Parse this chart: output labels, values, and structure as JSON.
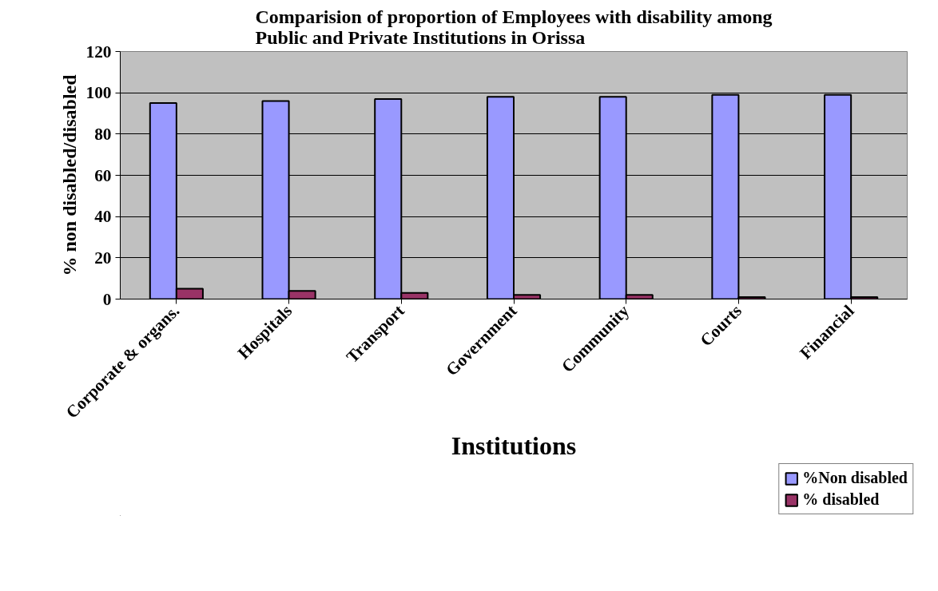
{
  "chart_data": {
    "type": "bar",
    "title": "Comparision of proportion of Employees with disability among\nPublic and Private Institutions in Orissa",
    "xlabel": "Institutions",
    "ylabel": "% non disabled/disabled",
    "categories": [
      "Corporate & organs.",
      "Hospitals",
      "Transport",
      "Government",
      "Community",
      "Courts",
      "Financial"
    ],
    "series": [
      {
        "name": "%Non disabled",
        "color": "#9999ff",
        "values": [
          95,
          96,
          97,
          98,
          98,
          99,
          99
        ]
      },
      {
        "name": "% disabled",
        "color": "#993366",
        "values": [
          5,
          4,
          3,
          2,
          2,
          1,
          1
        ]
      }
    ],
    "ylim": [
      0,
      120
    ],
    "yticks": [
      0,
      20,
      40,
      60,
      80,
      100,
      120
    ],
    "grid": "y",
    "legend": "bottom right"
  }
}
